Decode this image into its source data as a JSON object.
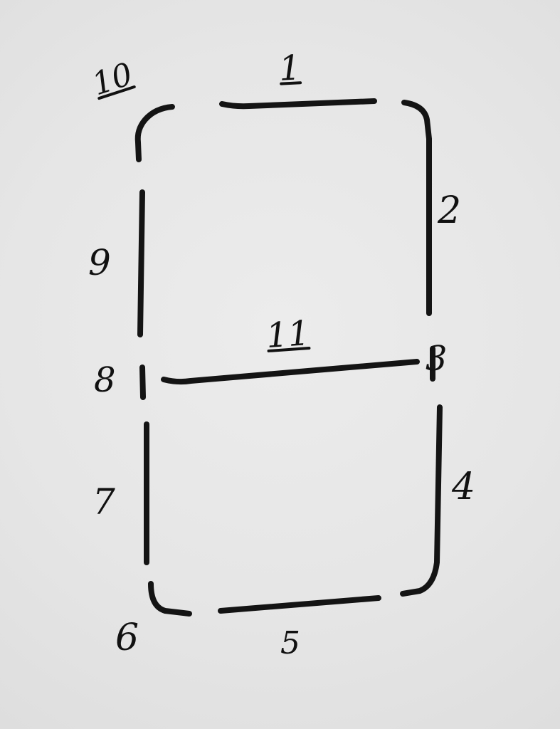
{
  "diagram": {
    "segments": [
      {
        "id": "top",
        "label": "1"
      },
      {
        "id": "right-upper",
        "label": "2"
      },
      {
        "id": "right-middle",
        "label": "3"
      },
      {
        "id": "right-lower",
        "label": "4"
      },
      {
        "id": "bottom",
        "label": "5"
      },
      {
        "id": "bottom-left-corner",
        "label": "6"
      },
      {
        "id": "left-lower",
        "label": "7"
      },
      {
        "id": "left-middle",
        "label": "8"
      },
      {
        "id": "left-upper",
        "label": "9"
      },
      {
        "id": "top-left-corner",
        "label": "10"
      },
      {
        "id": "middle",
        "label": "11"
      }
    ]
  }
}
